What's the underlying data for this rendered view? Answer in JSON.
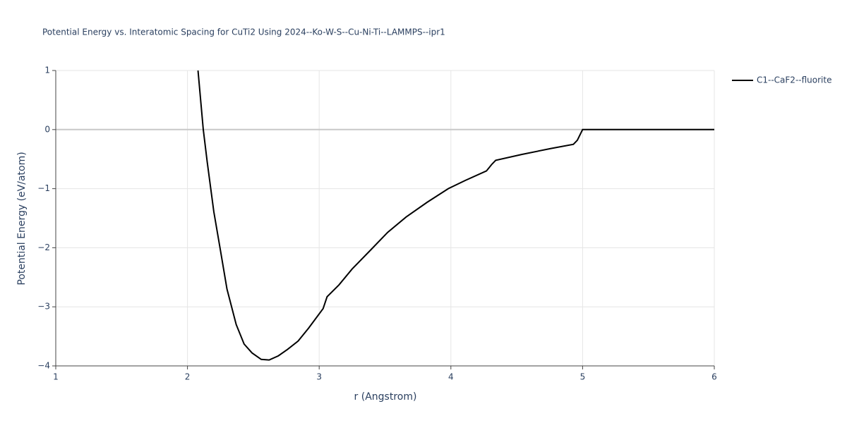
{
  "chart_data": {
    "type": "line",
    "title": "Potential Energy vs. Interatomic Spacing for CuTi2 Using 2024--Ko-W-S--Cu-Ni-Ti--LAMMPS--ipr1",
    "x_label": "r (Angstrom)",
    "y_label": "Potential Energy (eV/atom)",
    "xlim": [
      1,
      6
    ],
    "xticks": [
      1,
      2,
      3,
      4,
      5,
      6
    ],
    "ylim": [
      -4,
      1
    ],
    "yticks": [
      {
        "value": -4,
        "label": "−4"
      },
      {
        "value": -3,
        "label": "−3"
      },
      {
        "value": -2,
        "label": "−2"
      },
      {
        "value": -1,
        "label": "−1"
      },
      0,
      1
    ],
    "grid": true,
    "legend": "top-right",
    "series": [
      {
        "name": "C1--CaF2--fluorite",
        "color": "#000000",
        "x": [
          2.08,
          2.12,
          2.15,
          2.2,
          2.25,
          2.3,
          2.37,
          2.43,
          2.49,
          2.56,
          2.62,
          2.69,
          2.76,
          2.84,
          2.92,
          2.99,
          3.03,
          3.06,
          3.15,
          3.25,
          3.39,
          3.52,
          3.66,
          3.82,
          3.98,
          4.11,
          4.27,
          4.31,
          4.34,
          4.54,
          4.76,
          4.93,
          4.96,
          5.0,
          6.0
        ],
        "values": [
          1.0,
          0,
          -0.55,
          -1.39,
          -2.04,
          -2.7,
          -3.3,
          -3.63,
          -3.78,
          -3.89,
          -3.9,
          -3.83,
          -3.72,
          -3.58,
          -3.36,
          -3.15,
          -3.03,
          -2.83,
          -2.63,
          -2.36,
          -2.04,
          -1.74,
          -1.48,
          -1.23,
          -1.0,
          -0.86,
          -0.7,
          -0.59,
          -0.52,
          -0.42,
          -0.32,
          -0.25,
          -0.18,
          0,
          0
        ]
      }
    ]
  }
}
